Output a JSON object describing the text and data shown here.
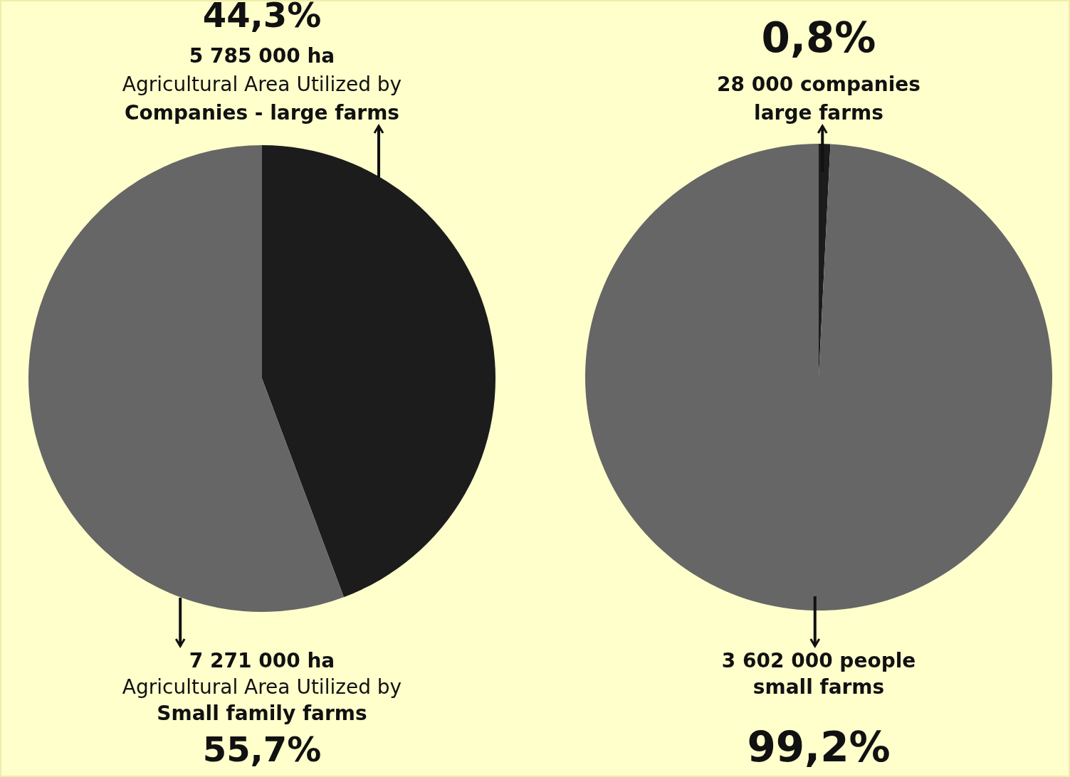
{
  "chart_data": [
    {
      "type": "pie",
      "categories": [
        "Companies - large farms",
        "Small family farms"
      ],
      "values": [
        44.3,
        55.7
      ],
      "colors": [
        "#1c1c1c",
        "#666666"
      ],
      "value_labels": [
        "44,3%",
        "55,7%"
      ],
      "annotations": [
        "5 785 000 ha",
        "Agricultural Area Utilized by",
        "7 271 000 ha",
        "Agricultural Area Utilized by"
      ]
    },
    {
      "type": "pie",
      "categories": [
        "large farms",
        "small farms"
      ],
      "values": [
        0.8,
        99.2
      ],
      "colors": [
        "#1c1c1c",
        "#666666"
      ],
      "value_labels": [
        "0,8%",
        "99,2%"
      ],
      "annotations": [
        "28 000 companies",
        "3 602 000 people"
      ]
    }
  ]
}
